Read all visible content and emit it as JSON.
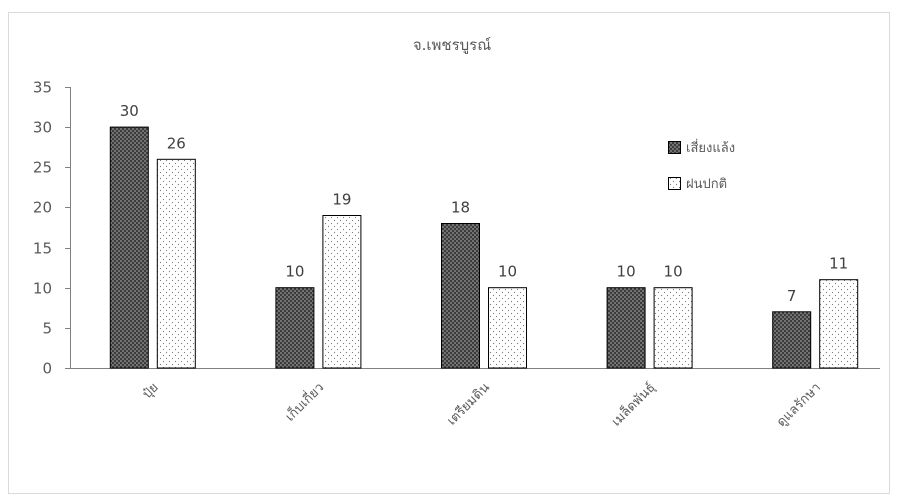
{
  "chart_data": {
    "type": "bar",
    "title": "จ.เพชรบูรณ์",
    "categories": [
      "ปุ๋ย",
      "เก็บเกี่ยว",
      "เตรียมดิน",
      "เมล็ดพันธุ์",
      "ดูแลรักษา"
    ],
    "series": [
      {
        "name": "เสี่ยงแล้ง",
        "values": [
          30,
          10,
          18,
          10,
          7
        ],
        "fill": "dark-dotted"
      },
      {
        "name": "ฝนปกติ",
        "values": [
          26,
          19,
          10,
          10,
          11
        ],
        "fill": "light-dotted"
      }
    ],
    "ylim": [
      0,
      35
    ],
    "yticks": [
      0,
      5,
      10,
      15,
      20,
      25,
      30,
      35
    ],
    "data_labels": true,
    "grid": false,
    "legend_position": "right",
    "colors": {
      "series_dark": "#3b3b3b",
      "series_dark_dots": "#bdbdbd",
      "series_light": "#ffffff",
      "series_light_dots": "#7a7a7a",
      "bar_outline": "#000000",
      "text": "#595959",
      "axis": "#808080",
      "frame": "#d9d9d9"
    }
  }
}
